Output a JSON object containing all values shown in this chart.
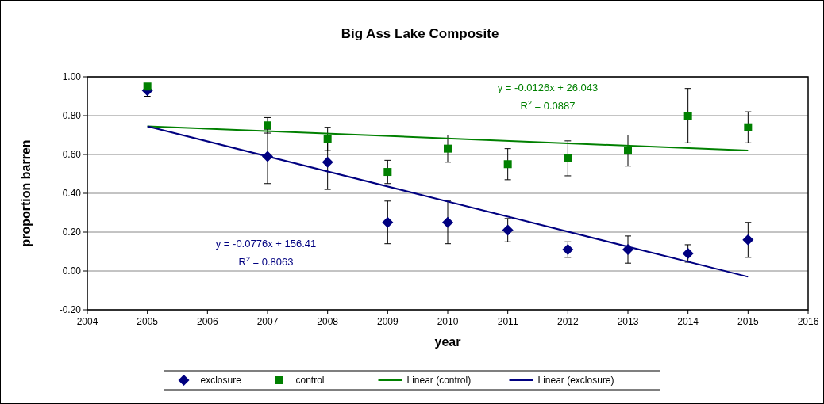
{
  "chart_data": {
    "type": "scatter",
    "title": "Big Ass Lake Composite",
    "xlabel": "year",
    "ylabel": "proportion barren",
    "xlim": [
      2004,
      2016
    ],
    "xticks": [
      2004,
      2005,
      2006,
      2007,
      2008,
      2009,
      2010,
      2011,
      2012,
      2013,
      2014,
      2015,
      2016
    ],
    "ylim": [
      -0.2,
      1.0
    ],
    "yticks": [
      {
        "value": -0.2,
        "label": "-0.20"
      },
      {
        "value": 0,
        "label": "0.00"
      },
      {
        "value": 0.2,
        "label": "0.20"
      },
      {
        "value": 0.4,
        "label": "0.40"
      },
      {
        "value": 0.6,
        "label": "0.60"
      },
      {
        "value": 0.8,
        "label": "0.80"
      },
      {
        "value": 1.0,
        "label": "1.00"
      }
    ],
    "grid": "y",
    "legend": "bottom",
    "series": [
      {
        "name": "exclosure",
        "marker": "diamond",
        "color": "#000080",
        "x": [
          2005,
          2007,
          2008,
          2009,
          2010,
          2011,
          2012,
          2013,
          2014,
          2015
        ],
        "values": [
          0.93,
          0.59,
          0.56,
          0.25,
          0.25,
          0.21,
          0.11,
          0.11,
          0.09,
          0.16
        ],
        "errors": [
          0.03,
          0.14,
          0.14,
          0.11,
          0.11,
          0.06,
          0.04,
          0.07,
          0.045,
          0.09
        ]
      },
      {
        "name": "control",
        "marker": "square",
        "color": "#008000",
        "x": [
          2005,
          2007,
          2008,
          2009,
          2010,
          2011,
          2012,
          2013,
          2014,
          2015
        ],
        "values": [
          0.95,
          0.75,
          0.68,
          0.51,
          0.63,
          0.55,
          0.58,
          0.62,
          0.8,
          0.74
        ],
        "errors": [
          null,
          0.04,
          0.06,
          0.06,
          0.07,
          0.08,
          0.09,
          0.08,
          0.14,
          0.08
        ]
      },
      {
        "name": "Linear (control)",
        "type": "line",
        "marker": "none",
        "color": "#008000",
        "x": [
          2005,
          2015
        ],
        "values": [
          0.745,
          0.62
        ]
      },
      {
        "name": "Linear (exclosure)",
        "type": "line",
        "marker": "none",
        "color": "#000080",
        "x": [
          2005,
          2015
        ],
        "values": [
          0.745,
          -0.03
        ]
      }
    ],
    "annotations": [
      "y = -0.0126x + 26.043",
      "R$^{2}$ = 0.0887",
      "y = -0.0776x + 156.41",
      "R$^{2}$ = 0.8063"
    ]
  }
}
